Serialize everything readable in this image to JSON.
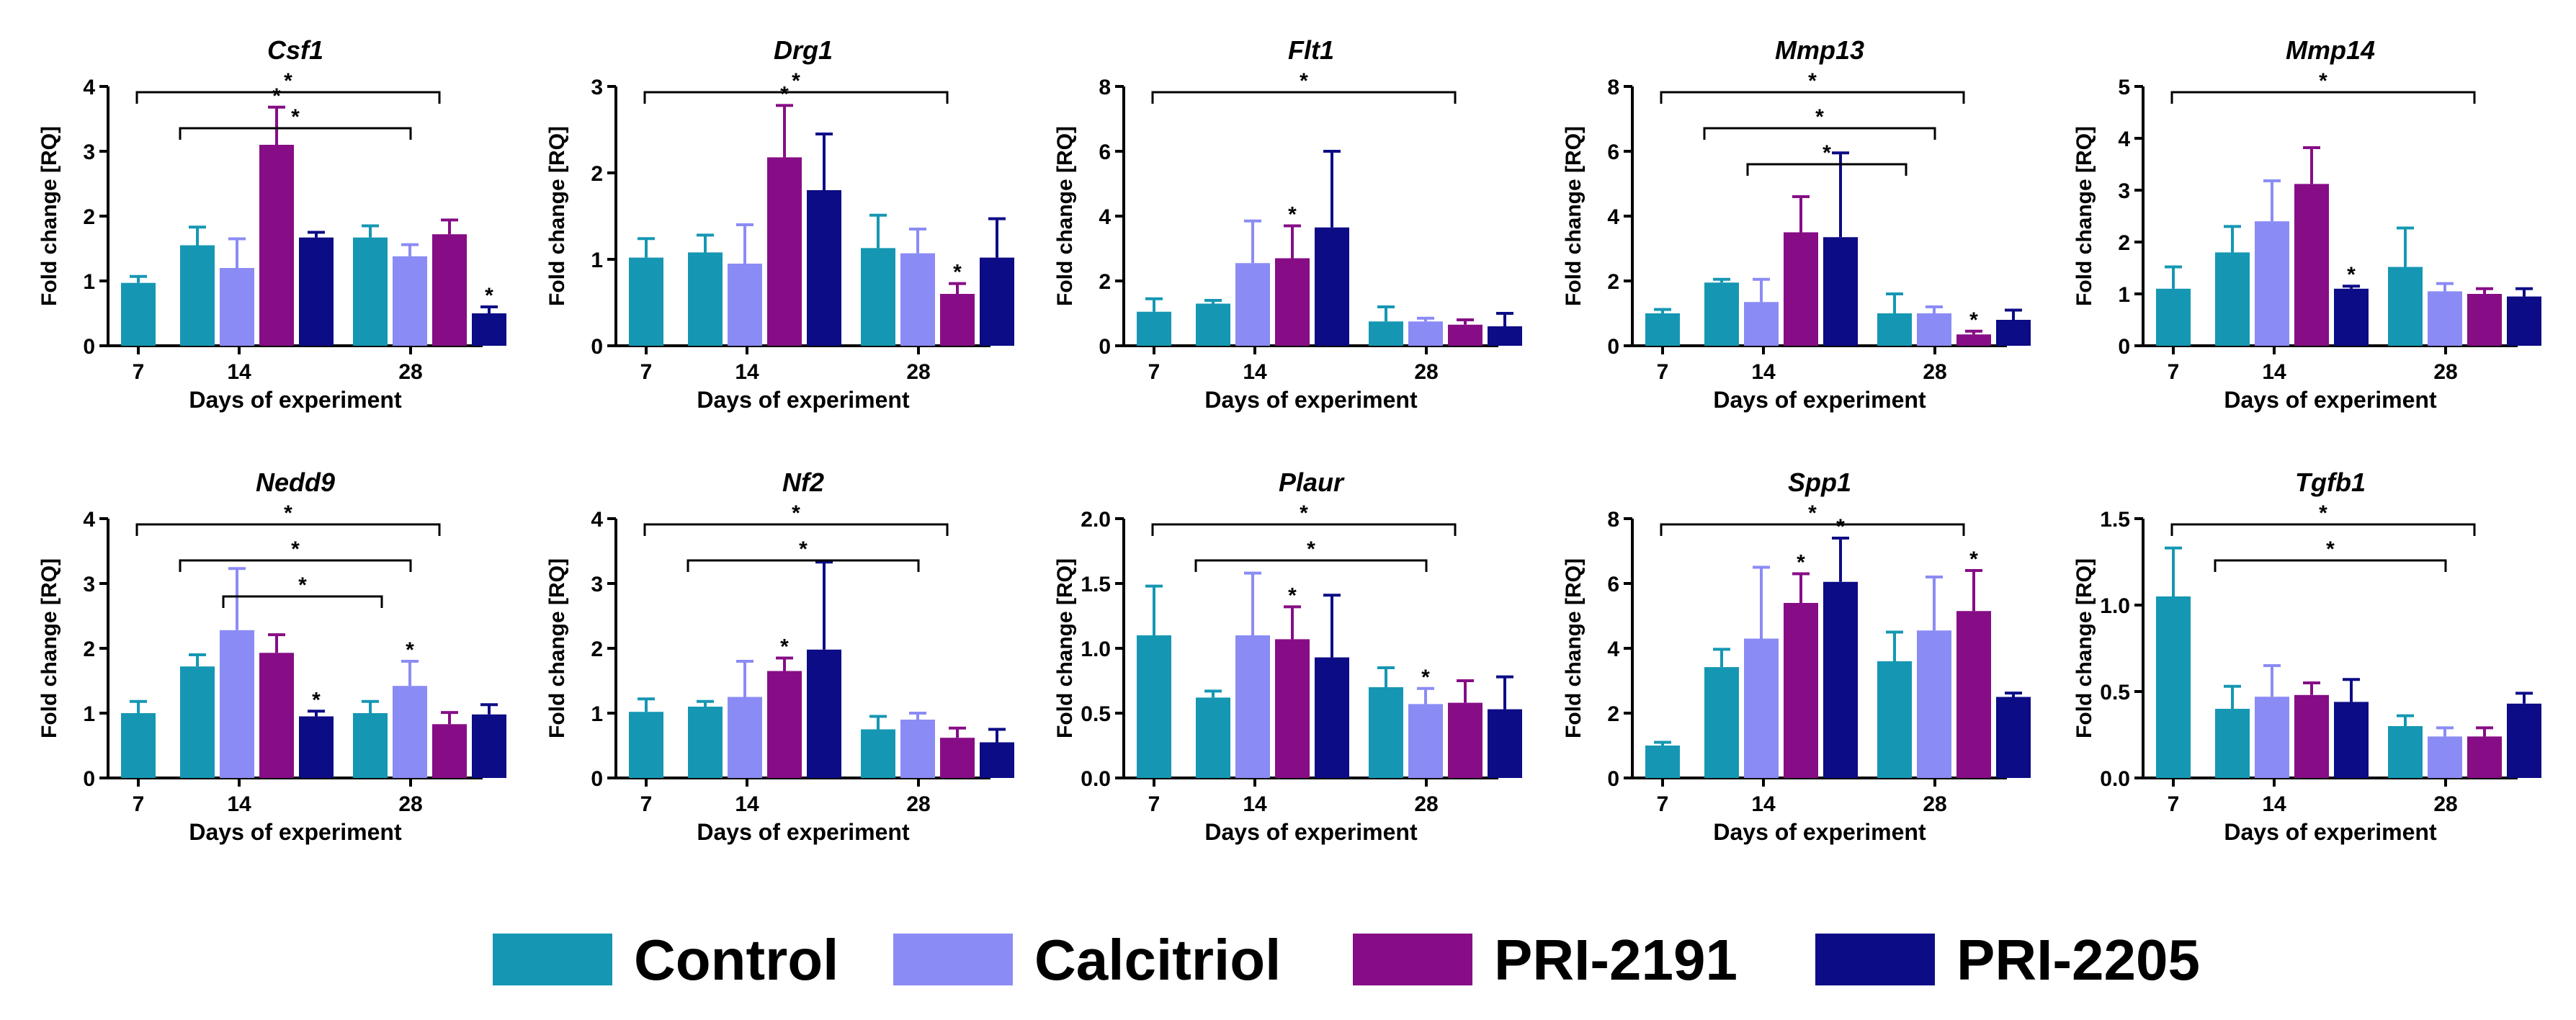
{
  "colors": {
    "Control": "#1597b3",
    "Calcitriol": "#8b8bf5",
    "PRI-2191": "#860d85",
    "PRI-2205": "#0c0c86"
  },
  "legend": {
    "items": [
      {
        "label": "Control",
        "color": "#1597b3"
      },
      {
        "label": "Calcitriol",
        "color": "#8b8bf5"
      },
      {
        "label": "PRI-2191",
        "color": "#860d85"
      },
      {
        "label": "PRI-2205",
        "color": "#0c0c86"
      }
    ]
  },
  "chart_data": [
    {
      "type": "bar",
      "title": "Csf1",
      "xlabel": "Days of experiment",
      "ylabel": "Fold change [RQ]",
      "ylim": [
        0,
        4
      ],
      "yticks": [
        0,
        1,
        2,
        3,
        4
      ],
      "ytick_labels": [
        "0",
        "1",
        "2",
        "3",
        "4"
      ],
      "x_tick_labels": [
        "7",
        "14",
        "28"
      ],
      "bars": [
        {
          "day": "7",
          "group": "Control",
          "value": 0.97,
          "err": 0.1
        },
        {
          "day": "14",
          "group": "Control",
          "value": 1.55,
          "err": 0.28
        },
        {
          "day": "14",
          "group": "Calcitriol",
          "value": 1.2,
          "err": 0.45
        },
        {
          "day": "14",
          "group": "PRI-2191",
          "value": 3.1,
          "err": 0.58,
          "star": true
        },
        {
          "day": "14",
          "group": "PRI-2205",
          "value": 1.67,
          "err": 0.08
        },
        {
          "day": "28",
          "group": "Control",
          "value": 1.67,
          "err": 0.18
        },
        {
          "day": "28",
          "group": "Calcitriol",
          "value": 1.38,
          "err": 0.18
        },
        {
          "day": "28",
          "group": "PRI-2191",
          "value": 1.72,
          "err": 0.22
        },
        {
          "day": "28",
          "group": "PRI-2205",
          "value": 0.5,
          "err": 0.1,
          "star": true
        }
      ],
      "annotations": [
        "*",
        "*"
      ]
    },
    {
      "type": "bar",
      "title": "Drg1",
      "xlabel": "Days of experiment",
      "ylabel": "Fold change [RQ]",
      "ylim": [
        0,
        3
      ],
      "yticks": [
        0,
        1,
        2,
        3
      ],
      "ytick_labels": [
        "0",
        "1",
        "2",
        "3"
      ],
      "x_tick_labels": [
        "7",
        "14",
        "28"
      ],
      "bars": [
        {
          "day": "7",
          "group": "Control",
          "value": 1.02,
          "err": 0.22
        },
        {
          "day": "14",
          "group": "Control",
          "value": 1.08,
          "err": 0.2
        },
        {
          "day": "14",
          "group": "Calcitriol",
          "value": 0.95,
          "err": 0.45
        },
        {
          "day": "14",
          "group": "PRI-2191",
          "value": 2.18,
          "err": 0.6,
          "star": true
        },
        {
          "day": "14",
          "group": "PRI-2205",
          "value": 1.8,
          "err": 0.65
        },
        {
          "day": "28",
          "group": "Control",
          "value": 1.13,
          "err": 0.38
        },
        {
          "day": "28",
          "group": "Calcitriol",
          "value": 1.07,
          "err": 0.28
        },
        {
          "day": "28",
          "group": "PRI-2191",
          "value": 0.6,
          "err": 0.12,
          "star": true
        },
        {
          "day": "28",
          "group": "PRI-2205",
          "value": 1.02,
          "err": 0.45
        }
      ],
      "annotations": [
        "*"
      ]
    },
    {
      "type": "bar",
      "title": "Flt1",
      "xlabel": "Days of experiment",
      "ylabel": "Fold change [RQ]",
      "ylim": [
        0,
        8
      ],
      "yticks": [
        0,
        2,
        4,
        6,
        8
      ],
      "ytick_labels": [
        "0",
        "2",
        "4",
        "6",
        "8"
      ],
      "x_tick_labels": [
        "7",
        "14",
        "28"
      ],
      "bars": [
        {
          "day": "7",
          "group": "Control",
          "value": 1.05,
          "err": 0.4
        },
        {
          "day": "14",
          "group": "Control",
          "value": 1.3,
          "err": 0.1
        },
        {
          "day": "14",
          "group": "Calcitriol",
          "value": 2.55,
          "err": 1.3
        },
        {
          "day": "14",
          "group": "PRI-2191",
          "value": 2.7,
          "err": 1.0,
          "star": true
        },
        {
          "day": "14",
          "group": "PRI-2205",
          "value": 3.65,
          "err": 2.35
        },
        {
          "day": "28",
          "group": "Control",
          "value": 0.75,
          "err": 0.45
        },
        {
          "day": "28",
          "group": "Calcitriol",
          "value": 0.75,
          "err": 0.1
        },
        {
          "day": "28",
          "group": "PRI-2191",
          "value": 0.65,
          "err": 0.15
        },
        {
          "day": "28",
          "group": "PRI-2205",
          "value": 0.6,
          "err": 0.4
        }
      ],
      "annotations": [
        "*"
      ]
    },
    {
      "type": "bar",
      "title": "Mmp13",
      "xlabel": "Days of experiment",
      "ylabel": "Fold change [RQ]",
      "ylim": [
        0,
        8
      ],
      "yticks": [
        0,
        2,
        4,
        6,
        8
      ],
      "ytick_labels": [
        "0",
        "2",
        "4",
        "6",
        "8"
      ],
      "x_tick_labels": [
        "7",
        "14",
        "28"
      ],
      "bars": [
        {
          "day": "7",
          "group": "Control",
          "value": 1.0,
          "err": 0.12
        },
        {
          "day": "14",
          "group": "Control",
          "value": 1.95,
          "err": 0.1
        },
        {
          "day": "14",
          "group": "Calcitriol",
          "value": 1.35,
          "err": 0.7
        },
        {
          "day": "14",
          "group": "PRI-2191",
          "value": 3.5,
          "err": 1.1
        },
        {
          "day": "14",
          "group": "PRI-2205",
          "value": 3.35,
          "err": 2.6
        },
        {
          "day": "28",
          "group": "Control",
          "value": 1.0,
          "err": 0.6
        },
        {
          "day": "28",
          "group": "Calcitriol",
          "value": 1.0,
          "err": 0.2
        },
        {
          "day": "28",
          "group": "PRI-2191",
          "value": 0.35,
          "err": 0.1,
          "star": true
        },
        {
          "day": "28",
          "group": "PRI-2205",
          "value": 0.8,
          "err": 0.3
        }
      ],
      "annotations": [
        "*",
        "*",
        "*"
      ]
    },
    {
      "type": "bar",
      "title": "Mmp14",
      "xlabel": "Days of experiment",
      "ylabel": "Fold change [RQ]",
      "ylim": [
        0,
        5
      ],
      "yticks": [
        0,
        1,
        2,
        3,
        4,
        5
      ],
      "ytick_labels": [
        "0",
        "1",
        "2",
        "3",
        "4",
        "5"
      ],
      "x_tick_labels": [
        "7",
        "14",
        "28"
      ],
      "bars": [
        {
          "day": "7",
          "group": "Control",
          "value": 1.1,
          "err": 0.42
        },
        {
          "day": "14",
          "group": "Control",
          "value": 1.8,
          "err": 0.5
        },
        {
          "day": "14",
          "group": "Calcitriol",
          "value": 2.4,
          "err": 0.78
        },
        {
          "day": "14",
          "group": "PRI-2191",
          "value": 3.12,
          "err": 0.7
        },
        {
          "day": "14",
          "group": "PRI-2205",
          "value": 1.1,
          "err": 0.05,
          "star": true
        },
        {
          "day": "28",
          "group": "Control",
          "value": 1.52,
          "err": 0.75
        },
        {
          "day": "28",
          "group": "Calcitriol",
          "value": 1.05,
          "err": 0.15
        },
        {
          "day": "28",
          "group": "PRI-2191",
          "value": 1.0,
          "err": 0.1
        },
        {
          "day": "28",
          "group": "PRI-2205",
          "value": 0.95,
          "err": 0.15
        }
      ],
      "annotations": [
        "*"
      ]
    },
    {
      "type": "bar",
      "title": "Nedd9",
      "xlabel": "Days of experiment",
      "ylabel": "Fold change [RQ]",
      "ylim": [
        0,
        4
      ],
      "yticks": [
        0,
        1,
        2,
        3,
        4
      ],
      "ytick_labels": [
        "0",
        "1",
        "2",
        "3",
        "4"
      ],
      "x_tick_labels": [
        "7",
        "14",
        "28"
      ],
      "bars": [
        {
          "day": "7",
          "group": "Control",
          "value": 1.0,
          "err": 0.18
        },
        {
          "day": "14",
          "group": "Control",
          "value": 1.72,
          "err": 0.18
        },
        {
          "day": "14",
          "group": "Calcitriol",
          "value": 2.28,
          "err": 0.95
        },
        {
          "day": "14",
          "group": "PRI-2191",
          "value": 1.93,
          "err": 0.28
        },
        {
          "day": "14",
          "group": "PRI-2205",
          "value": 0.95,
          "err": 0.08,
          "star": true
        },
        {
          "day": "28",
          "group": "Control",
          "value": 1.0,
          "err": 0.18
        },
        {
          "day": "28",
          "group": "Calcitriol",
          "value": 1.42,
          "err": 0.38,
          "star": true
        },
        {
          "day": "28",
          "group": "PRI-2191",
          "value": 0.83,
          "err": 0.18
        },
        {
          "day": "28",
          "group": "PRI-2205",
          "value": 0.98,
          "err": 0.15
        }
      ],
      "annotations": [
        "*",
        "*",
        "*"
      ]
    },
    {
      "type": "bar",
      "title": "Nf2",
      "xlabel": "Days of experiment",
      "ylabel": "Fold change [RQ]",
      "ylim": [
        0,
        4
      ],
      "yticks": [
        0,
        1,
        2,
        3,
        4
      ],
      "ytick_labels": [
        "0",
        "1",
        "2",
        "3",
        "4"
      ],
      "x_tick_labels": [
        "7",
        "14",
        "28"
      ],
      "bars": [
        {
          "day": "7",
          "group": "Control",
          "value": 1.02,
          "err": 0.2
        },
        {
          "day": "14",
          "group": "Control",
          "value": 1.1,
          "err": 0.08
        },
        {
          "day": "14",
          "group": "Calcitriol",
          "value": 1.25,
          "err": 0.55
        },
        {
          "day": "14",
          "group": "PRI-2191",
          "value": 1.65,
          "err": 0.2,
          "star": true
        },
        {
          "day": "14",
          "group": "PRI-2205",
          "value": 1.98,
          "err": 1.35
        },
        {
          "day": "28",
          "group": "Control",
          "value": 0.75,
          "err": 0.2
        },
        {
          "day": "28",
          "group": "Calcitriol",
          "value": 0.9,
          "err": 0.1
        },
        {
          "day": "28",
          "group": "PRI-2191",
          "value": 0.62,
          "err": 0.15
        },
        {
          "day": "28",
          "group": "PRI-2205",
          "value": 0.55,
          "err": 0.2
        }
      ],
      "annotations": [
        "*",
        "*"
      ]
    },
    {
      "type": "bar",
      "title": "Plaur",
      "xlabel": "Days of experiment",
      "ylabel": "Fold change [RQ]",
      "ylim": [
        0,
        2.0
      ],
      "yticks": [
        0,
        0.5,
        1.0,
        1.5,
        2.0
      ],
      "ytick_labels": [
        "0.0",
        "0.5",
        "1.0",
        "1.5",
        "2.0"
      ],
      "x_tick_labels": [
        "7",
        "14",
        "28"
      ],
      "bars": [
        {
          "day": "7",
          "group": "Control",
          "value": 1.1,
          "err": 0.38
        },
        {
          "day": "14",
          "group": "Control",
          "value": 0.62,
          "err": 0.05
        },
        {
          "day": "14",
          "group": "Calcitriol",
          "value": 1.1,
          "err": 0.48
        },
        {
          "day": "14",
          "group": "PRI-2191",
          "value": 1.07,
          "err": 0.25,
          "star": true
        },
        {
          "day": "14",
          "group": "PRI-2205",
          "value": 0.93,
          "err": 0.48
        },
        {
          "day": "28",
          "group": "Control",
          "value": 0.7,
          "err": 0.15
        },
        {
          "day": "28",
          "group": "Calcitriol",
          "value": 0.57,
          "err": 0.12,
          "star": true
        },
        {
          "day": "28",
          "group": "PRI-2191",
          "value": 0.58,
          "err": 0.17
        },
        {
          "day": "28",
          "group": "PRI-2205",
          "value": 0.53,
          "err": 0.25
        }
      ],
      "annotations": [
        "*",
        "*"
      ]
    },
    {
      "type": "bar",
      "title": "Spp1",
      "xlabel": "Days of experiment",
      "ylabel": "Fold change [RQ]",
      "ylim": [
        0,
        8
      ],
      "yticks": [
        0,
        2,
        4,
        6,
        8
      ],
      "ytick_labels": [
        "0",
        "2",
        "4",
        "6",
        "8"
      ],
      "x_tick_labels": [
        "7",
        "14",
        "28"
      ],
      "bars": [
        {
          "day": "7",
          "group": "Control",
          "value": 1.0,
          "err": 0.1
        },
        {
          "day": "14",
          "group": "Control",
          "value": 3.42,
          "err": 0.55
        },
        {
          "day": "14",
          "group": "Calcitriol",
          "value": 4.3,
          "err": 2.2
        },
        {
          "day": "14",
          "group": "PRI-2191",
          "value": 5.4,
          "err": 0.9,
          "star": true
        },
        {
          "day": "14",
          "group": "PRI-2205",
          "value": 6.05,
          "err": 1.35,
          "star": true
        },
        {
          "day": "28",
          "group": "Control",
          "value": 3.6,
          "err": 0.9
        },
        {
          "day": "28",
          "group": "Calcitriol",
          "value": 4.55,
          "err": 1.65
        },
        {
          "day": "28",
          "group": "PRI-2191",
          "value": 5.15,
          "err": 1.25,
          "star": true
        },
        {
          "day": "28",
          "group": "PRI-2205",
          "value": 2.5,
          "err": 0.12
        }
      ],
      "annotations": [
        "*"
      ]
    },
    {
      "type": "bar",
      "title": "Tgfb1",
      "xlabel": "Days of experiment",
      "ylabel": "Fold change [RQ]",
      "ylim": [
        0,
        1.5
      ],
      "yticks": [
        0,
        0.5,
        1.0,
        1.5
      ],
      "ytick_labels": [
        "0.0",
        "0.5",
        "1.0",
        "1.5"
      ],
      "x_tick_labels": [
        "7",
        "14",
        "28"
      ],
      "bars": [
        {
          "day": "7",
          "group": "Control",
          "value": 1.05,
          "err": 0.28
        },
        {
          "day": "14",
          "group": "Control",
          "value": 0.4,
          "err": 0.13
        },
        {
          "day": "14",
          "group": "Calcitriol",
          "value": 0.47,
          "err": 0.18
        },
        {
          "day": "14",
          "group": "PRI-2191",
          "value": 0.48,
          "err": 0.07
        },
        {
          "day": "14",
          "group": "PRI-2205",
          "value": 0.44,
          "err": 0.13
        },
        {
          "day": "28",
          "group": "Control",
          "value": 0.3,
          "err": 0.06
        },
        {
          "day": "28",
          "group": "Calcitriol",
          "value": 0.24,
          "err": 0.05
        },
        {
          "day": "28",
          "group": "PRI-2191",
          "value": 0.24,
          "err": 0.05
        },
        {
          "day": "28",
          "group": "PRI-2205",
          "value": 0.43,
          "err": 0.06
        }
      ],
      "annotations": [
        "*",
        "*"
      ]
    }
  ]
}
